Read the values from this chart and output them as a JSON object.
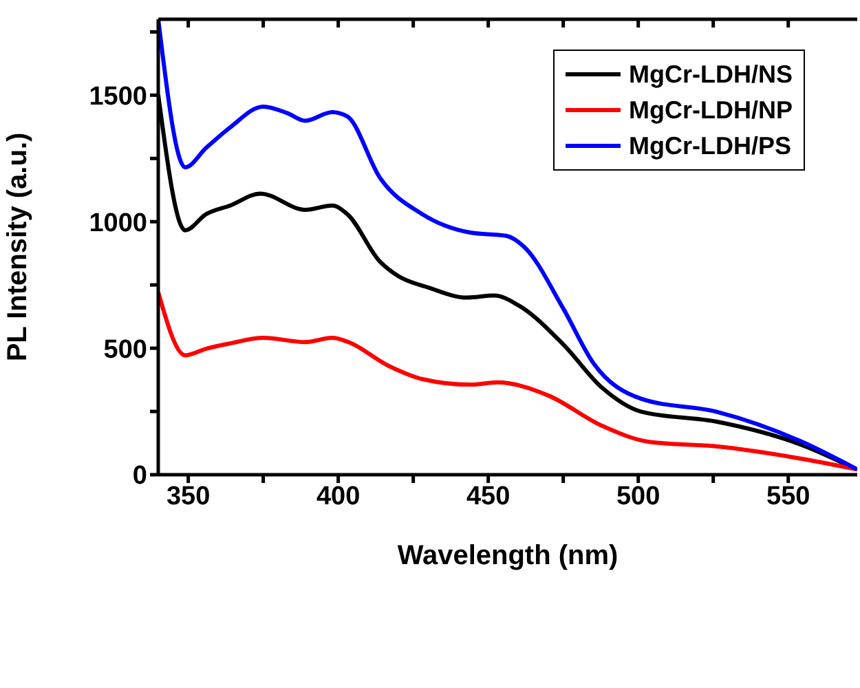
{
  "chart_data": {
    "type": "line",
    "xlabel": "Wavelength (nm)",
    "ylabel": "PL Intensity (a.u.)",
    "xlim": [
      340,
      573
    ],
    "ylim": [
      0,
      1800
    ],
    "xticks": [
      350,
      {
        "value": 375,
        "label": null
      },
      400,
      {
        "value": 425,
        "label": null
      },
      450,
      {
        "value": 475,
        "label": null
      },
      500,
      {
        "value": 525,
        "label": null
      },
      550
    ],
    "yticks": [
      0,
      {
        "value": 250,
        "label": null
      },
      500,
      {
        "value": 750,
        "label": null
      },
      1000,
      {
        "value": 1250,
        "label": null
      },
      1500,
      {
        "value": 1750,
        "label": null
      }
    ],
    "legend": "top right",
    "grid": false,
    "marker": "none",
    "line_style": "solid",
    "series": [
      {
        "name": "MgCr-LDH/NS",
        "color": "#000000",
        "x": [
          340,
          349,
          356,
          364,
          374,
          389,
          398,
          403,
          414,
          420,
          430,
          443,
          452,
          460,
          475,
          488,
          501,
          526,
          554,
          573
        ],
        "values": [
          1502,
          966,
          1030,
          1064,
          1111,
          1047,
          1064,
          1030,
          841,
          785,
          740,
          700,
          708,
          670,
          515,
          343,
          249,
          210,
          120,
          20
        ]
      },
      {
        "name": "MgCr-LDH/NP",
        "color": "#ff0000",
        "x": [
          340,
          349,
          356,
          364,
          375,
          389,
          398,
          403,
          417,
          428,
          444,
          453,
          470,
          488,
          504,
          526,
          554,
          573
        ],
        "values": [
          721,
          472,
          498,
          519,
          541,
          524,
          541,
          526,
          429,
          378,
          356,
          365,
          313,
          193,
          129,
          112,
          64,
          21
        ]
      },
      {
        "name": "MgCr-LDH/PS",
        "color": "#0000ff",
        "x": [
          340,
          349,
          356,
          364,
          375,
          383,
          389,
          398,
          403,
          414,
          428,
          444,
          456,
          462,
          475,
          485,
          501,
          526,
          554,
          573
        ],
        "values": [
          1800,
          1215,
          1292,
          1373,
          1455,
          1429,
          1399,
          1433,
          1416,
          1172,
          1030,
          957,
          944,
          900,
          657,
          442,
          300,
          249,
          133,
          21
        ]
      }
    ]
  }
}
